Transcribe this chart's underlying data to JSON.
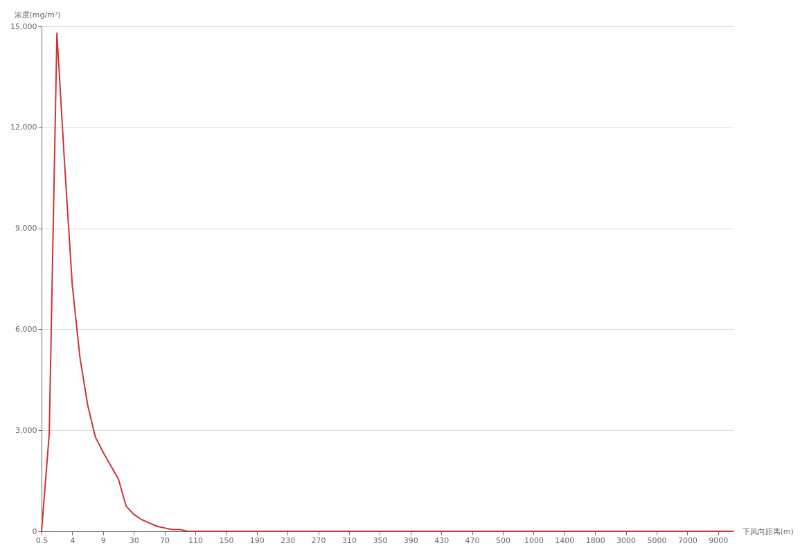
{
  "chart_data": {
    "type": "line",
    "xlabel": "下风向距离(m)",
    "ylabel": "浓度(mg/m³)",
    "categories": [
      "0.5",
      null,
      null,
      null,
      "4",
      null,
      null,
      null,
      "9",
      null,
      null,
      null,
      "30",
      null,
      null,
      null,
      "70",
      null,
      null,
      null,
      "110",
      null,
      null,
      null,
      "150",
      null,
      null,
      null,
      "190",
      null,
      null,
      null,
      "230",
      null,
      null,
      null,
      "270",
      null,
      null,
      null,
      "310",
      null,
      null,
      null,
      "350",
      null,
      null,
      null,
      "390",
      null,
      null,
      null,
      "430",
      null,
      null,
      null,
      "470",
      null,
      null,
      null,
      "500",
      null,
      null,
      null,
      "1000",
      null,
      null,
      null,
      "1400",
      null,
      null,
      null,
      "1800",
      null,
      null,
      null,
      "3000",
      null,
      null,
      null,
      "5000",
      null,
      null,
      null,
      "7000",
      null,
      null,
      null,
      "9000",
      null,
      null
    ],
    "series": [
      {
        "color": "#cc3333",
        "values": [
          0,
          2900,
          14800,
          10900,
          7300,
          5150,
          3750,
          2800,
          2350,
          1950,
          1550,
          750,
          500,
          350,
          250,
          150,
          100,
          50,
          50,
          0,
          0,
          0,
          0,
          0,
          0,
          0,
          0,
          0,
          0,
          0,
          0,
          0,
          0,
          0,
          0,
          0,
          0,
          0,
          0,
          0,
          0,
          0,
          0,
          0,
          0,
          0,
          0,
          0,
          0,
          0,
          0,
          0,
          0,
          0,
          0,
          0,
          0,
          0,
          0,
          0,
          0,
          0,
          0,
          0,
          0,
          0,
          0,
          0,
          0,
          0,
          0,
          0,
          0,
          0,
          0,
          0,
          0,
          0,
          0,
          0,
          0,
          0,
          0,
          0,
          0,
          0,
          0,
          0,
          0,
          0,
          0
        ]
      }
    ],
    "ylim": [
      0,
      15000
    ],
    "yticks": [
      0,
      {
        "value": 3000,
        "label": "3,000"
      },
      {
        "value": 6000,
        "label": "6,000"
      },
      {
        "value": 9000,
        "label": "9,000"
      },
      {
        "value": 12000,
        "label": "12,000"
      },
      {
        "value": 15000,
        "label": "15,000"
      }
    ],
    "grid": "y",
    "marker": "none",
    "line_style": "solid"
  }
}
